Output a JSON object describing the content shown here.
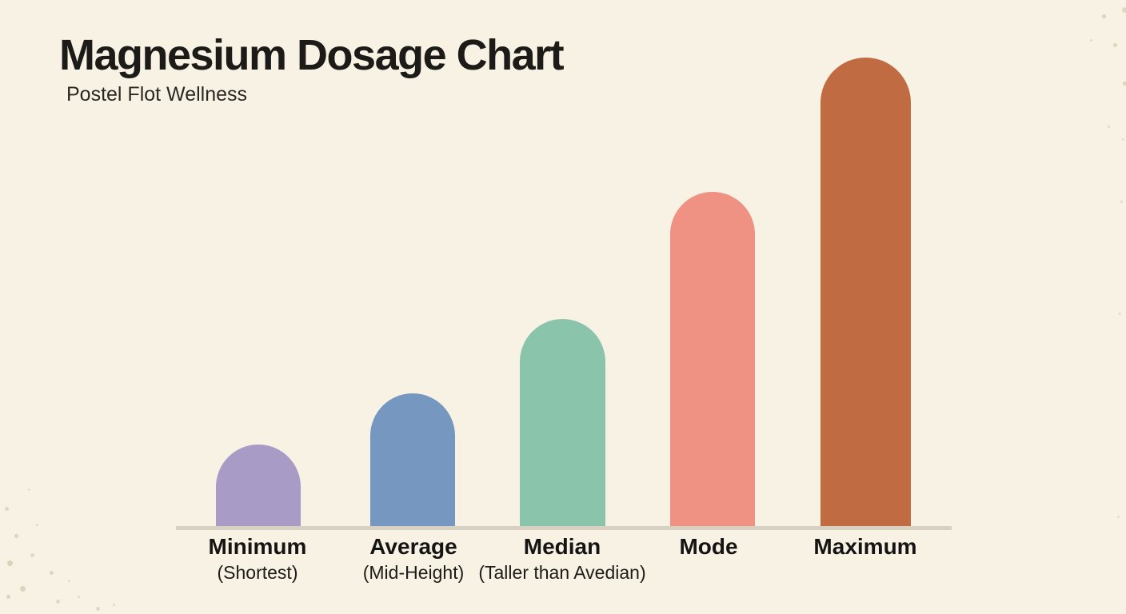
{
  "page": {
    "background_color": "#f7f2e4",
    "speckle_color": "#c5b898"
  },
  "header": {
    "title": "Magnesium Dosage Chart",
    "subtitle": "Postel Flot Wellness",
    "title_color": "#1d1b18"
  },
  "chart_data": {
    "type": "bar",
    "title": "Magnesium Dosage Chart",
    "subtitle": "Postel Flot Wellness",
    "categories": [
      "Minimum",
      "Average",
      "Median",
      "Mode",
      "Maximum"
    ],
    "sublabels": [
      "(Shortest)",
      "(Mid-Height)",
      "(Taller than Avedian)",
      "",
      ""
    ],
    "values_relative": [
      0.18,
      0.29,
      0.44,
      0.71,
      1.0
    ],
    "bar_colors": [
      "#a89cc6",
      "#7698c0",
      "#8ac5ab",
      "#ef9283",
      "#c16b42"
    ],
    "baseline_color": "#d8d1c2",
    "xlabel": "",
    "ylabel": "",
    "y_axis_visible": false,
    "grid": false,
    "legend": "none",
    "bar_style": "rounded-top"
  }
}
